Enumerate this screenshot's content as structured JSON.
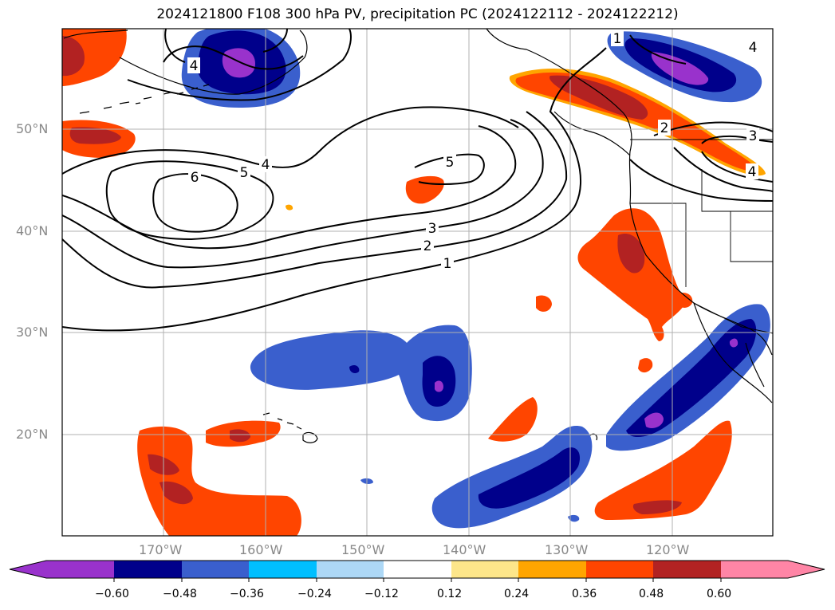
{
  "title": "2024121800 F108 300 hPa PV, precipitation PC (2024122112 - 2024122212)",
  "map": {
    "lat_labels": [
      "50°N",
      "40°N",
      "30°N",
      "20°N"
    ],
    "lon_labels": [
      "170°W",
      "160°W",
      "150°W",
      "140°W",
      "130°W",
      "120°W"
    ],
    "contour_labels": [
      "1",
      "2",
      "3",
      "4",
      "5",
      "6",
      "4",
      "5",
      "4",
      "1",
      "2",
      "3",
      "4"
    ]
  },
  "colorbar": {
    "ticks": [
      "−0.60",
      "−0.48",
      "−0.36",
      "−0.24",
      "−0.12",
      "0.12",
      "0.24",
      "0.36",
      "0.48",
      "0.60"
    ],
    "colors": [
      "#9932cc",
      "#00008b",
      "#3a5fcd",
      "#00bfff",
      "#add8f6",
      "#ffffff",
      "#fde68a",
      "#ffa500",
      "#ff4500",
      "#b22222",
      "#ff85a6"
    ]
  }
}
